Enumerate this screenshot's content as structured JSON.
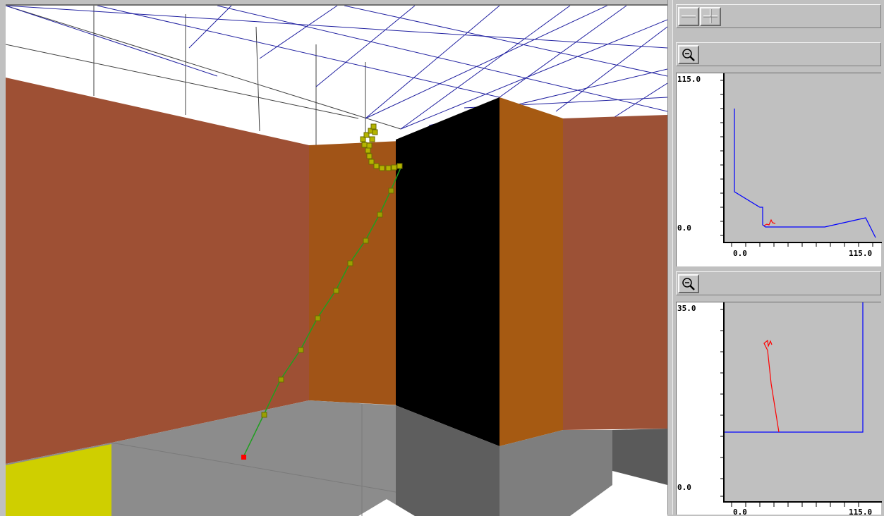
{
  "toolbar": {
    "zoom_out_icon": "minus-icon",
    "zoom_in_icon": "plus-icon"
  },
  "plot_top": {
    "zoom_icon": "magnifier-zoom-icon",
    "y_max_label": "115.0",
    "y_min_label": "0.0",
    "x_min_label": "0.0",
    "x_max_label": "115.0",
    "colors": {
      "wall": "#0000ff",
      "path": "#ff0000",
      "background": "#c0c0c0"
    }
  },
  "plot_bottom": {
    "zoom_icon": "magnifier-zoom-icon",
    "y_max_label": "35.0",
    "y_min_label": "0.0",
    "x_min_label": "0.0",
    "x_max_label": "115.0",
    "colors": {
      "wall": "#0000ff",
      "path": "#ff0000",
      "background": "#c0c0c0"
    }
  },
  "scene": {
    "colors": {
      "left_wall": "#9e5034",
      "back_wall": "#a15417",
      "pillar": "#000000",
      "pillar_side": "#a65a12",
      "right_wall": "#9c5136",
      "floor": "#8c8c8c",
      "yellow_block": "#cfcf00",
      "ceiling_grid": "#2020a0",
      "path_line": "#1f9f1f",
      "path_marker": "#9aa000",
      "start_marker": "#ff0000"
    }
  }
}
